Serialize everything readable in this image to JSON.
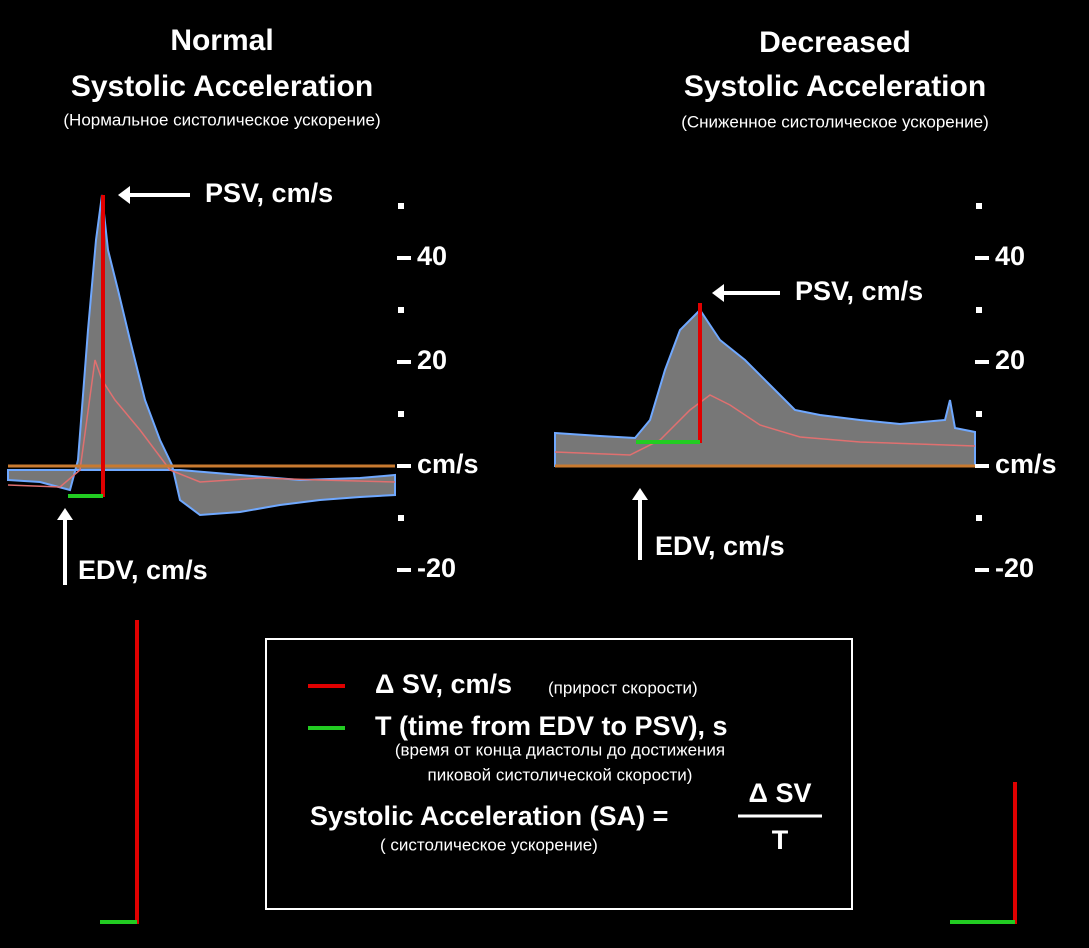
{
  "left": {
    "title": [
      "Normal",
      "Systolic  Acceleration"
    ],
    "subtitle": "(Нормальное систолическое ускорение)",
    "psv_label": "PSV, cm/s",
    "edv_label": "EDV, cm/s",
    "scale": [
      "40",
      "20",
      "cm/s",
      "-20"
    ]
  },
  "right": {
    "title": [
      "Decreased",
      "Systolic Acceleration"
    ],
    "subtitle": "(Сниженное систолическое ускорение)",
    "psv_label": "PSV, cm/s",
    "edv_label": "EDV, cm/s",
    "scale": [
      "40",
      "20",
      "cm/s",
      "-20"
    ]
  },
  "legend": {
    "delta_sv": "Δ SV, cm/s",
    "delta_sv_note": "(прирост скорости)",
    "t": "T (time from EDV to PSV), s",
    "t_note": [
      "(время от конца диастолы до достижения",
      "пиковой систолической скорости)"
    ],
    "formula": "Systolic Acceleration (SA) =",
    "numerator": "Δ SV",
    "denominator": "T",
    "formula_note": "( систолическое ускорение)"
  }
}
